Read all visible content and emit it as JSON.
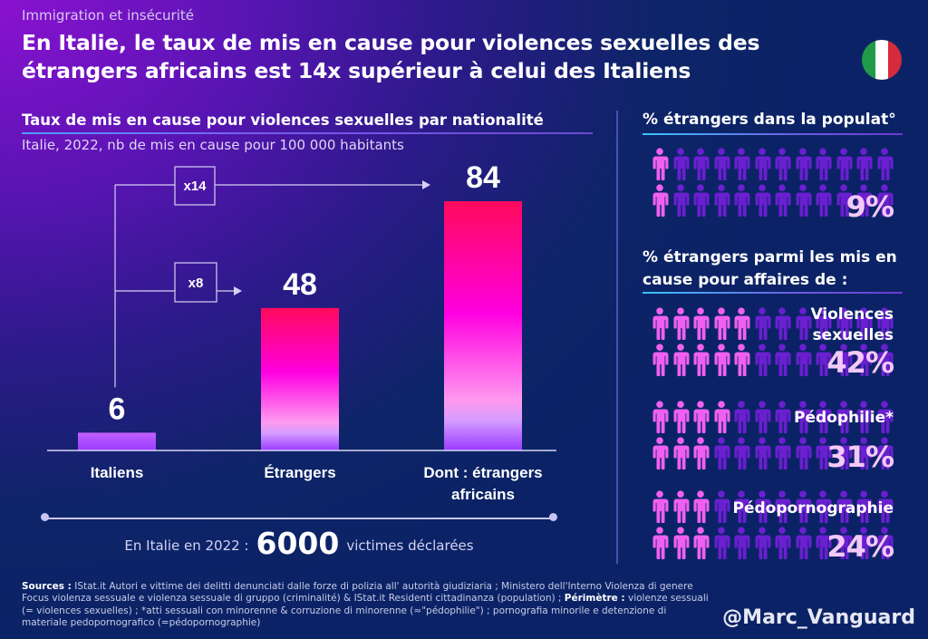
{
  "header": {
    "kicker": "Immigration et insécurité",
    "title_line1": "En Italie, le taux de mis en cause pour violences sexuelles des",
    "title_line2": "étrangers africains est 14x supérieur à celui des Italiens",
    "flag_icon": "italy-flag-icon",
    "flag_colors": [
      "#1e9a48",
      "#ffffff",
      "#d52b3a"
    ]
  },
  "chart_data": {
    "type": "bar",
    "title": "Taux de mis en cause pour violences sexuelles par nationalité",
    "subtitle": "Italie, 2022, nb de mis en cause pour 100 000 habitants",
    "categories": [
      "Italiens",
      "Étrangers",
      "Dont : étrangers africains"
    ],
    "category_lines": [
      [
        "Italiens"
      ],
      [
        "Étrangers"
      ],
      [
        "Dont : étrangers",
        "africains"
      ]
    ],
    "values": [
      6,
      48,
      84
    ],
    "value_labels": [
      "6",
      "48",
      "84"
    ],
    "ylim": [
      0,
      84
    ],
    "xlabel": "",
    "ylabel": "",
    "grid": false,
    "annotations": [
      {
        "label": "x14",
        "from": "Italiens",
        "to": "Dont : étrangers africains"
      },
      {
        "label": "x8",
        "from": "Italiens",
        "to": "Étrangers"
      }
    ],
    "colors": {
      "bar_top": "#ff0a5c",
      "bar_mid": "#ff00e0",
      "bar_light": "#ff9af0",
      "bar_bottom": "#9a3aff",
      "italiens_bar": "#b24cff"
    }
  },
  "victims": {
    "prefix": "En Italie en 2022 :",
    "number": "6000",
    "suffix": "victimes déclarées"
  },
  "population": {
    "heading": "% étrangers dans la populat°",
    "percent_label": "9%",
    "percent": 9,
    "highlighted_per_row": [
      1,
      1
    ]
  },
  "arrests": {
    "heading_line1": "% étrangers parmi les mis en",
    "heading_line2": "cause pour affaires de :",
    "items": [
      {
        "label_lines": [
          "Violences",
          "sexuelles"
        ],
        "percent_label": "42%",
        "percent": 42,
        "highlighted_per_row": [
          5,
          5
        ]
      },
      {
        "label_lines": [
          "Pédophilie*"
        ],
        "percent_label": "31%",
        "percent": 31,
        "highlighted_per_row": [
          4,
          3
        ]
      },
      {
        "label_lines": [
          "Pédopornographie"
        ],
        "percent_label": "24%",
        "percent": 24,
        "highlighted_per_row": [
          3,
          3
        ]
      }
    ]
  },
  "icons": {
    "person": "person-icon",
    "people_per_row": 12,
    "rows": 2,
    "highlight_color": "#f060f0",
    "base_color": "#6a1fd0"
  },
  "footer": {
    "sources_label": "Sources :",
    "sources_text1": " IStat.it Autori e vittime dei delitti denunciati dalle forze di polizia all' autorità giudiziaria ; Ministero dell'Interno Violenza di genere Focus violenza sessuale e violenza sessuale di gruppo (criminalité) & IStat.it Residenti cittadinanza (population) ; ",
    "perimetre_label": "Périmètre :",
    "sources_text2": " violenze sessuali (= violences sexuelles) ; *atti sessuali con minorenne & corruzione di minorenne (≈\"pédophilie\") ; pornografia minorile e detenzione di materiale pedopornografico (=pédopornographie)",
    "handle": "@Marc_Vanguard"
  }
}
